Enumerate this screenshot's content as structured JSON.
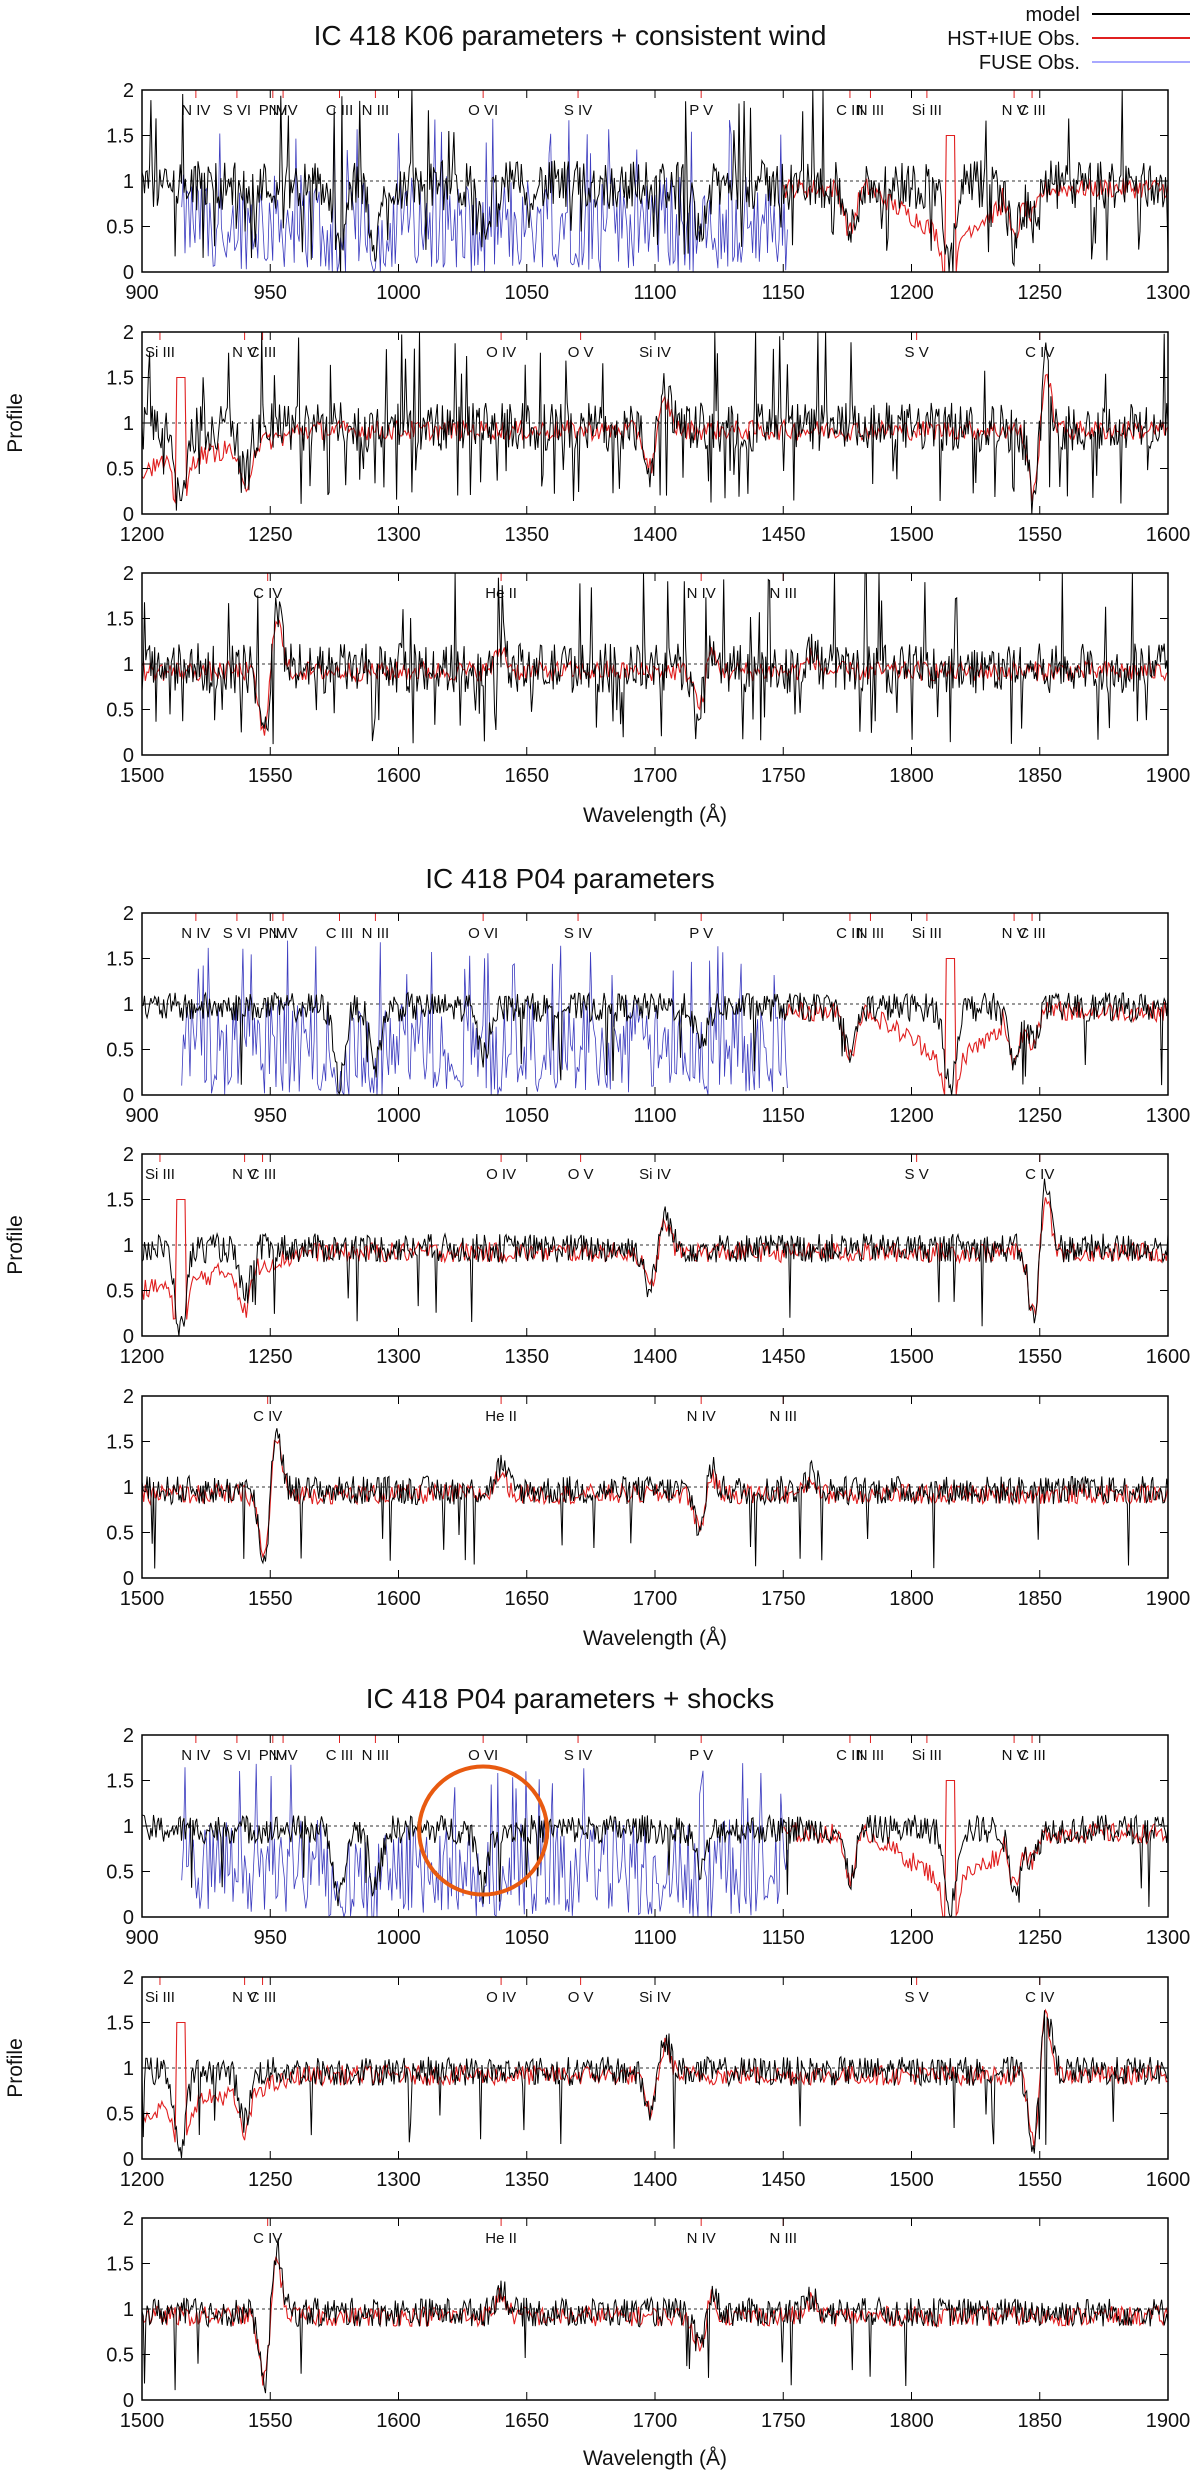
{
  "figure": {
    "legend": [
      {
        "label": "model",
        "color": "#000000"
      },
      {
        "label": "HST+IUE Obs.",
        "color": "#e02020"
      },
      {
        "label": "FUSE Obs.",
        "color": "#a8a8ff"
      }
    ],
    "fuse_color": "#1a1ab4",
    "annotation": {
      "type": "circle",
      "color": "#e85a10",
      "block": 2,
      "panel": 0,
      "center_x": 1033,
      "center_y": 0.95
    }
  },
  "chart_data": [
    {
      "type": "line",
      "title": "IC 418 K06 parameters + consistent wind",
      "ylabel": "Profile",
      "xlabel": "Wavelength (Å)",
      "ylim": [
        0,
        2
      ],
      "yticks": [
        "0",
        "0.5",
        "1",
        "1.5",
        "2"
      ],
      "panels": [
        {
          "xlim": [
            900,
            1300
          ],
          "xticks": [
            "900",
            "950",
            "1000",
            "1050",
            "1100",
            "1150",
            "1200",
            "1250",
            "1300"
          ],
          "lines": [
            {
              "text": "N IV",
              "x": 921
            },
            {
              "text": "S VI",
              "x": 937
            },
            {
              "text": "P IV",
              "x": 951
            },
            {
              "text": "N IV",
              "x": 955
            },
            {
              "text": "C III",
              "x": 977
            },
            {
              "text": "N III",
              "x": 991
            },
            {
              "text": "O VI",
              "x": 1033
            },
            {
              "text": "S IV",
              "x": 1070
            },
            {
              "text": "P V",
              "x": 1118
            },
            {
              "text": "C III",
              "x": 1176
            },
            {
              "text": "N III",
              "x": 1184
            },
            {
              "text": "Si III",
              "x": 1206
            },
            {
              "text": "N V",
              "x": 1240
            },
            {
              "text": "C III",
              "x": 1247
            }
          ]
        },
        {
          "xlim": [
            1200,
            1600
          ],
          "xticks": [
            "1200",
            "1250",
            "1300",
            "1350",
            "1400",
            "1450",
            "1500",
            "1550",
            "1600"
          ],
          "lines": [
            {
              "text": "Si III",
              "x": 1207
            },
            {
              "text": "N V",
              "x": 1240
            },
            {
              "text": "C III",
              "x": 1247
            },
            {
              "text": "O IV",
              "x": 1340
            },
            {
              "text": "O V",
              "x": 1371
            },
            {
              "text": "Si IV",
              "x": 1400
            },
            {
              "text": "S V",
              "x": 1502
            },
            {
              "text": "C IV",
              "x": 1550
            }
          ]
        },
        {
          "xlim": [
            1500,
            1900
          ],
          "xticks": [
            "1500",
            "1550",
            "1600",
            "1650",
            "1700",
            "1750",
            "1800",
            "1850",
            "1900"
          ],
          "lines": [
            {
              "text": "C IV",
              "x": 1549
            },
            {
              "text": "He II",
              "x": 1640
            },
            {
              "text": "N IV",
              "x": 1718
            },
            {
              "text": "N III",
              "x": 1750
            }
          ]
        }
      ]
    },
    {
      "type": "line",
      "title": "IC 418 P04 parameters",
      "ylabel": "Profile",
      "xlabel": "Wavelength (Å)",
      "ylim": [
        0,
        2
      ],
      "yticks": [
        "0",
        "0.5",
        "1",
        "1.5",
        "2"
      ],
      "panels": [
        {
          "xlim": [
            900,
            1300
          ],
          "xticks": [
            "900",
            "950",
            "1000",
            "1050",
            "1100",
            "1150",
            "1200",
            "1250",
            "1300"
          ],
          "lines": [
            {
              "text": "N IV",
              "x": 921
            },
            {
              "text": "S VI",
              "x": 937
            },
            {
              "text": "P IV",
              "x": 951
            },
            {
              "text": "N IV",
              "x": 955
            },
            {
              "text": "C III",
              "x": 977
            },
            {
              "text": "N III",
              "x": 991
            },
            {
              "text": "O VI",
              "x": 1033
            },
            {
              "text": "S IV",
              "x": 1070
            },
            {
              "text": "P V",
              "x": 1118
            },
            {
              "text": "C III",
              "x": 1176
            },
            {
              "text": "N III",
              "x": 1184
            },
            {
              "text": "Si III",
              "x": 1206
            },
            {
              "text": "N V",
              "x": 1240
            },
            {
              "text": "C III",
              "x": 1247
            }
          ]
        },
        {
          "xlim": [
            1200,
            1600
          ],
          "xticks": [
            "1200",
            "1250",
            "1300",
            "1350",
            "1400",
            "1450",
            "1500",
            "1550",
            "1600"
          ],
          "lines": [
            {
              "text": "Si III",
              "x": 1207
            },
            {
              "text": "N V",
              "x": 1240
            },
            {
              "text": "C III",
              "x": 1247
            },
            {
              "text": "O IV",
              "x": 1340
            },
            {
              "text": "O V",
              "x": 1371
            },
            {
              "text": "Si IV",
              "x": 1400
            },
            {
              "text": "S V",
              "x": 1502
            },
            {
              "text": "C IV",
              "x": 1550
            }
          ]
        },
        {
          "xlim": [
            1500,
            1900
          ],
          "xticks": [
            "1500",
            "1550",
            "1600",
            "1650",
            "1700",
            "1750",
            "1800",
            "1850",
            "1900"
          ],
          "lines": [
            {
              "text": "C IV",
              "x": 1549
            },
            {
              "text": "He II",
              "x": 1640
            },
            {
              "text": "N IV",
              "x": 1718
            },
            {
              "text": "N III",
              "x": 1750
            }
          ]
        }
      ]
    },
    {
      "type": "line",
      "title": "IC 418 P04 parameters + shocks",
      "ylabel": "Profile",
      "xlabel": "Wavelength (Å)",
      "ylim": [
        0,
        2
      ],
      "yticks": [
        "0",
        "0.5",
        "1",
        "1.5",
        "2"
      ],
      "panels": [
        {
          "xlim": [
            900,
            1300
          ],
          "xticks": [
            "900",
            "950",
            "1000",
            "1050",
            "1100",
            "1150",
            "1200",
            "1250",
            "1300"
          ],
          "lines": [
            {
              "text": "N IV",
              "x": 921
            },
            {
              "text": "S VI",
              "x": 937
            },
            {
              "text": "P IV",
              "x": 951
            },
            {
              "text": "N IV",
              "x": 955
            },
            {
              "text": "C III",
              "x": 977
            },
            {
              "text": "N III",
              "x": 991
            },
            {
              "text": "O VI",
              "x": 1033
            },
            {
              "text": "S IV",
              "x": 1070
            },
            {
              "text": "P V",
              "x": 1118
            },
            {
              "text": "C III",
              "x": 1176
            },
            {
              "text": "N III",
              "x": 1184
            },
            {
              "text": "Si III",
              "x": 1206
            },
            {
              "text": "N V",
              "x": 1240
            },
            {
              "text": "C III",
              "x": 1247
            }
          ]
        },
        {
          "xlim": [
            1200,
            1600
          ],
          "xticks": [
            "1200",
            "1250",
            "1300",
            "1350",
            "1400",
            "1450",
            "1500",
            "1550",
            "1600"
          ],
          "lines": [
            {
              "text": "Si III",
              "x": 1207
            },
            {
              "text": "N V",
              "x": 1240
            },
            {
              "text": "C III",
              "x": 1247
            },
            {
              "text": "O IV",
              "x": 1340
            },
            {
              "text": "O V",
              "x": 1371
            },
            {
              "text": "Si IV",
              "x": 1400
            },
            {
              "text": "S V",
              "x": 1502
            },
            {
              "text": "C IV",
              "x": 1550
            }
          ]
        },
        {
          "xlim": [
            1500,
            1900
          ],
          "xticks": [
            "1500",
            "1550",
            "1600",
            "1650",
            "1700",
            "1750",
            "1800",
            "1850",
            "1900"
          ],
          "lines": [
            {
              "text": "C IV",
              "x": 1549
            },
            {
              "text": "He II",
              "x": 1640
            },
            {
              "text": "N IV",
              "x": 1718
            },
            {
              "text": "N III",
              "x": 1750
            }
          ]
        }
      ]
    }
  ]
}
